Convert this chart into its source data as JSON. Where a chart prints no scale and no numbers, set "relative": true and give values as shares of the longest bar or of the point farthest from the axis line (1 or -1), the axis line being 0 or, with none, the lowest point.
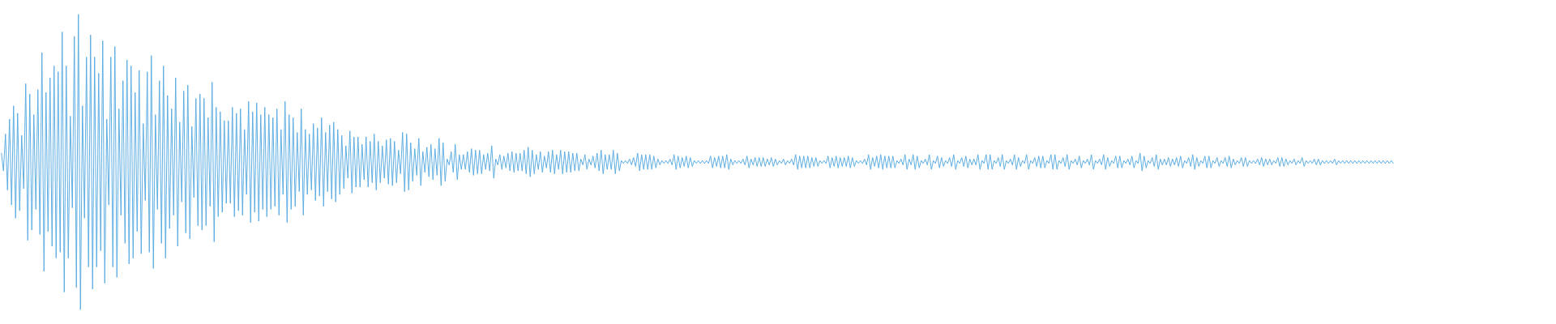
{
  "chart_data": {
    "type": "line",
    "relative": true,
    "tick_labels": false,
    "color": "#5dade2",
    "line_style": "solid",
    "categories": [
      null,
      null,
      null,
      null,
      null,
      null,
      null,
      null,
      null,
      null,
      null,
      null,
      null,
      null,
      null,
      null,
      null,
      null,
      null,
      null,
      null,
      null,
      null,
      null,
      null,
      null,
      null,
      null,
      null,
      null,
      null,
      null,
      null,
      null,
      null,
      null,
      null,
      null,
      null,
      null,
      null,
      null,
      null,
      null,
      null,
      null,
      null,
      null,
      null,
      null,
      null,
      null,
      null,
      null,
      null,
      null,
      null,
      null,
      null,
      null,
      null,
      null,
      null,
      null,
      null,
      null,
      null,
      null,
      null,
      null,
      null,
      null,
      null,
      null,
      null,
      null,
      null,
      null,
      null,
      null,
      null,
      null,
      null,
      null,
      null,
      null,
      null,
      null,
      null,
      null,
      null,
      null,
      null,
      null,
      null,
      null,
      null,
      null,
      null,
      null,
      null,
      null,
      null,
      null,
      null,
      null,
      null,
      null,
      null,
      null,
      null,
      null,
      null,
      null,
      null,
      null,
      null,
      null,
      null,
      null,
      null,
      null,
      null,
      null,
      null,
      null,
      null,
      null,
      null,
      null,
      null,
      null,
      null,
      null,
      null,
      null,
      null,
      null,
      null,
      null,
      null,
      null,
      null,
      null,
      null,
      null,
      null,
      null,
      null,
      null,
      null,
      null,
      null,
      null,
      null,
      null,
      null,
      null,
      null,
      null,
      null,
      null,
      null,
      null,
      null,
      null,
      null,
      null,
      null,
      null,
      null,
      null,
      null,
      null,
      null,
      null,
      null,
      null,
      null,
      null,
      null,
      null,
      null,
      null,
      null,
      null,
      null,
      null,
      null,
      null,
      null,
      null,
      null,
      null,
      null,
      null,
      null,
      null,
      null,
      null,
      null,
      null,
      null,
      null,
      null,
      null,
      null,
      null,
      null,
      null,
      null,
      null,
      null,
      null,
      null,
      null,
      null,
      null,
      null,
      null,
      null,
      null,
      null,
      null,
      null,
      null,
      null,
      null,
      null,
      null,
      null,
      null,
      null,
      null,
      null,
      null,
      null,
      null,
      null,
      null,
      null,
      null,
      null,
      null,
      null,
      null,
      null,
      null,
      null,
      null,
      null,
      null,
      null,
      null,
      null,
      null,
      null,
      null,
      null,
      null,
      null,
      null,
      null,
      null,
      null,
      null,
      null,
      null,
      null,
      null,
      null,
      null,
      null,
      null,
      null,
      null,
      null,
      null,
      null,
      null,
      null,
      null,
      null,
      null,
      null,
      null,
      null,
      null,
      null,
      null,
      null,
      null,
      null,
      null,
      null,
      null,
      null,
      null,
      null,
      null,
      null,
      null,
      null,
      null,
      null,
      null,
      null,
      null,
      null,
      null,
      null,
      null,
      null,
      null,
      null,
      null,
      null,
      null,
      null,
      null,
      null,
      null,
      null,
      null,
      null,
      null,
      null,
      null,
      null,
      null,
      null,
      null,
      null,
      null,
      null,
      null,
      null,
      null,
      null,
      null,
      null,
      null,
      null,
      null,
      null,
      null,
      null,
      null,
      null,
      null,
      null,
      null,
      null,
      null,
      null,
      null,
      null,
      null,
      null,
      null,
      null,
      null,
      null,
      null,
      null,
      null,
      null,
      null,
      null,
      null,
      null,
      null,
      null,
      null,
      null,
      null,
      null,
      null,
      null,
      null,
      null,
      null,
      null,
      null,
      null,
      null,
      null,
      null,
      null,
      null,
      null,
      null,
      null,
      null,
      null,
      null,
      null,
      null,
      null,
      null,
      null,
      null,
      null,
      null,
      null,
      null,
      null,
      null,
      null,
      null,
      null,
      null,
      null,
      null,
      null,
      null,
      null,
      null,
      null,
      null,
      null,
      null,
      null,
      null,
      null,
      null,
      null,
      null,
      null,
      null,
      null,
      null,
      null,
      null,
      null,
      null,
      null,
      null,
      null,
      null,
      null,
      null,
      null,
      null,
      null,
      null,
      null,
      null,
      null,
      null,
      null,
      null,
      null,
      null,
      null,
      null,
      null,
      null,
      null,
      null,
      null,
      null,
      null,
      null,
      null,
      null,
      null,
      null,
      null,
      null,
      null,
      null,
      null,
      null,
      null,
      null,
      null,
      null,
      null,
      null,
      null,
      null,
      null,
      null,
      null,
      null,
      null,
      null,
      null,
      null,
      null,
      null,
      null,
      null,
      null,
      null,
      null,
      null,
      null,
      null,
      null,
      null,
      null,
      null,
      null,
      null,
      null,
      null,
      null,
      null,
      null,
      null,
      null,
      null,
      null,
      null,
      null,
      null,
      null,
      null,
      null,
      null,
      null,
      null,
      null,
      null,
      null,
      null,
      null,
      null,
      null,
      null,
      null,
      null,
      null,
      null,
      null,
      null,
      null,
      null,
      null,
      null,
      null,
      null,
      null,
      null,
      null,
      null,
      null,
      null,
      null,
      null,
      null,
      null,
      null,
      null,
      null,
      null,
      null,
      null,
      null,
      null,
      null,
      null,
      null,
      null,
      null,
      null,
      null,
      null,
      null,
      null,
      null,
      null,
      null,
      null,
      null,
      null,
      null,
      null,
      null,
      null,
      null,
      null,
      null,
      null,
      null,
      null,
      null,
      null,
      null,
      null,
      null,
      null,
      null,
      null,
      null,
      null,
      null,
      null,
      null,
      null,
      null,
      null,
      null,
      null,
      null,
      null,
      null,
      null,
      null,
      null,
      null,
      null,
      null,
      null,
      null,
      null,
      null,
      null,
      null,
      null,
      null,
      null,
      null,
      null,
      null,
      null,
      null,
      null,
      null,
      null,
      null,
      null,
      null,
      null,
      null,
      null,
      null,
      null,
      null,
      null,
      null,
      null,
      null,
      null,
      null,
      null,
      null,
      null,
      null,
      null,
      null,
      null,
      null,
      null,
      null,
      null,
      null,
      null,
      null,
      null,
      null,
      null,
      null,
      null,
      null,
      null,
      null,
      null,
      null,
      null,
      null,
      null,
      null,
      null,
      null,
      null,
      null,
      null,
      null,
      null,
      null,
      null,
      null,
      null,
      null,
      null
    ],
    "values": [
      0.53,
      0.47,
      0.595,
      0.405,
      0.645,
      0.355,
      0.69,
      0.31,
      0.665,
      0.335,
      0.59,
      0.41,
      0.765,
      0.235,
      0.73,
      0.27,
      0.66,
      0.34,
      0.745,
      0.255,
      0.87,
      0.13,
      0.735,
      0.265,
      0.785,
      0.215,
      0.825,
      0.175,
      0.805,
      0.195,
      0.94,
      0.06,
      0.825,
      0.175,
      0.655,
      0.345,
      0.925,
      0.075,
      1,
      0,
      0.69,
      0.31,
      0.855,
      0.145,
      0.93,
      0.07,
      0.855,
      0.145,
      0.8,
      0.2,
      0.91,
      0.09,
      0.645,
      0.355,
      0.855,
      0.145,
      0.89,
      0.11,
      0.68,
      0.32,
      0.775,
      0.225,
      0.845,
      0.155,
      0.825,
      0.175,
      0.735,
      0.265,
      0.81,
      0.19,
      0.63,
      0.37,
      0.805,
      0.195,
      0.86,
      0.14,
      0.66,
      0.34,
      0.775,
      0.225,
      0.825,
      0.175,
      0.725,
      0.275,
      0.68,
      0.32,
      0.785,
      0.215,
      0.635,
      0.365,
      0.74,
      0.26,
      0.76,
      0.24,
      0.62,
      0.38,
      0.715,
      0.285,
      0.73,
      0.27,
      0.715,
      0.285,
      0.65,
      0.35,
      0.77,
      0.23,
      0.685,
      0.315,
      0.67,
      0.33,
      0.64,
      0.36,
      0.64,
      0.36,
      0.685,
      0.315,
      0.665,
      0.335,
      0.68,
      0.32,
      0.61,
      0.39,
      0.705,
      0.295,
      0.67,
      0.33,
      0.7,
      0.3,
      0.66,
      0.34,
      0.685,
      0.315,
      0.66,
      0.34,
      0.65,
      0.35,
      0.68,
      0.32,
      0.61,
      0.39,
      0.705,
      0.295,
      0.66,
      0.34,
      0.65,
      0.35,
      0.6,
      0.4,
      0.68,
      0.32,
      0.61,
      0.39,
      0.595,
      0.405,
      0.63,
      0.37,
      0.615,
      0.385,
      0.65,
      0.35,
      0.6,
      0.4,
      0.625,
      0.375,
      0.635,
      0.365,
      0.61,
      0.39,
      0.59,
      0.41,
      0.555,
      0.445,
      0.605,
      0.395,
      0.585,
      0.415,
      0.585,
      0.415,
      0.56,
      0.44,
      0.585,
      0.415,
      0.57,
      0.43,
      0.595,
      0.405,
      0.57,
      0.43,
      0.555,
      0.445,
      0.575,
      0.425,
      0.58,
      0.42,
      0.57,
      0.43,
      0.54,
      0.46,
      0.6,
      0.4,
      0.595,
      0.405,
      0.565,
      0.435,
      0.545,
      0.455,
      0.58,
      0.42,
      0.535,
      0.465,
      0.55,
      0.45,
      0.56,
      0.44,
      0.545,
      0.455,
      0.58,
      0.42,
      0.565,
      0.435,
      0.51,
      0.49,
      0.535,
      0.465,
      0.56,
      0.44,
      0.525,
      0.475,
      0.525,
      0.475,
      0.535,
      0.465,
      0.545,
      0.455,
      0.54,
      0.46,
      0.54,
      0.46,
      0.525,
      0.475,
      0.53,
      0.47,
      0.555,
      0.445,
      0.51,
      0.49,
      0.525,
      0.475,
      0.52,
      0.48,
      0.53,
      0.47,
      0.535,
      0.465,
      0.53,
      0.47,
      0.53,
      0.47,
      0.54,
      0.46,
      0.55,
      0.45,
      0.54,
      0.46,
      0.525,
      0.475,
      0.535,
      0.465,
      0.52,
      0.48,
      0.535,
      0.465,
      0.54,
      0.46,
      0.525,
      0.475,
      0.54,
      0.46,
      0.535,
      0.465,
      0.535,
      0.465,
      0.53,
      0.47,
      0.53,
      0.47,
      0.51,
      0.49,
      0.525,
      0.475,
      0.51,
      0.49,
      0.52,
      0.48,
      0.53,
      0.47,
      0.54,
      0.46,
      0.525,
      0.475,
      0.525,
      0.475,
      0.54,
      0.46,
      0.53,
      0.47,
      0.505,
      0.495,
      0.505,
      0.495,
      0.51,
      0.49,
      0.515,
      0.485,
      0.53,
      0.47,
      0.525,
      0.475,
      0.525,
      0.475,
      0.525,
      0.475,
      0.52,
      0.48,
      0.51,
      0.49,
      0.505,
      0.495,
      0.505,
      0.495,
      0.51,
      0.49,
      0.525,
      0.475,
      0.52,
      0.48,
      0.515,
      0.485,
      0.52,
      0.48,
      0.515,
      0.485,
      0.505,
      0.495,
      0.505,
      0.495,
      0.505,
      0.495,
      0.505,
      0.495,
      0.52,
      0.48,
      0.515,
      0.485,
      0.52,
      0.48,
      0.52,
      0.48,
      0.525,
      0.475,
      0.51,
      0.49,
      0.505,
      0.495,
      0.505,
      0.495,
      0.51,
      0.49,
      0.52,
      0.48,
      0.51,
      0.49,
      0.515,
      0.485,
      0.515,
      0.485,
      0.515,
      0.485,
      0.51,
      0.49,
      0.515,
      0.485,
      0.51,
      0.49,
      0.505,
      0.495,
      0.51,
      0.49,
      0.505,
      0.495,
      0.51,
      0.49,
      0.525,
      0.475,
      0.52,
      0.48,
      0.52,
      0.48,
      0.52,
      0.48,
      0.515,
      0.485,
      0.515,
      0.485,
      0.505,
      0.495,
      0.505,
      0.495,
      0.52,
      0.48,
      0.515,
      0.485,
      0.52,
      0.48,
      0.515,
      0.485,
      0.515,
      0.485,
      0.52,
      0.48,
      0.515,
      0.485,
      0.505,
      0.495,
      0.505,
      0.495,
      0.51,
      0.49,
      0.525,
      0.475,
      0.515,
      0.485,
      0.52,
      0.48,
      0.525,
      0.475,
      0.52,
      0.48,
      0.52,
      0.48,
      0.52,
      0.48,
      0.505,
      0.495,
      0.51,
      0.49,
      0.525,
      0.475,
      0.51,
      0.49,
      0.525,
      0.475,
      0.52,
      0.48,
      0.505,
      0.495,
      0.51,
      0.49,
      0.525,
      0.475,
      0.505,
      0.495,
      0.52,
      0.48,
      0.515,
      0.485,
      0.505,
      0.495,
      0.515,
      0.485,
      0.525,
      0.475,
      0.505,
      0.495,
      0.515,
      0.485,
      0.52,
      0.48,
      0.51,
      0.49,
      0.51,
      0.49,
      0.525,
      0.475,
      0.505,
      0.495,
      0.525,
      0.475,
      0.525,
      0.475,
      0.505,
      0.495,
      0.515,
      0.485,
      0.525,
      0.475,
      0.505,
      0.495,
      0.51,
      0.49,
      0.525,
      0.475,
      0.515,
      0.485,
      0.505,
      0.495,
      0.525,
      0.475,
      0.505,
      0.495,
      0.515,
      0.485,
      0.52,
      0.48,
      0.52,
      0.48,
      0.505,
      0.495,
      0.525,
      0.475,
      0.525,
      0.475,
      0.505,
      0.495,
      0.515,
      0.485,
      0.525,
      0.475,
      0.505,
      0.495,
      0.51,
      0.49,
      0.52,
      0.48,
      0.505,
      0.495,
      0.51,
      0.49,
      0.525,
      0.475,
      0.505,
      0.495,
      0.51,
      0.49,
      0.525,
      0.475,
      0.515,
      0.485,
      0.505,
      0.495,
      0.52,
      0.48,
      0.52,
      0.48,
      0.505,
      0.495,
      0.51,
      0.49,
      0.52,
      0.48,
      0.505,
      0.495,
      0.53,
      0.47,
      0.52,
      0.48,
      0.505,
      0.495,
      0.515,
      0.485,
      0.525,
      0.475,
      0.51,
      0.49,
      0.51,
      0.49,
      0.515,
      0.485,
      0.51,
      0.49,
      0.515,
      0.485,
      0.52,
      0.48,
      0.505,
      0.495,
      0.515,
      0.485,
      0.525,
      0.475,
      0.515,
      0.485,
      0.505,
      0.495,
      0.52,
      0.48,
      0.52,
      0.48,
      0.505,
      0.495,
      0.515,
      0.485,
      0.505,
      0.495,
      0.515,
      0.485,
      0.52,
      0.48,
      0.51,
      0.49,
      0.505,
      0.495,
      0.515,
      0.485,
      0.515,
      0.485,
      0.505,
      0.495,
      0.505,
      0.495,
      0.51,
      0.49,
      0.515,
      0.485,
      0.51,
      0.49,
      0.51,
      0.49,
      0.505,
      0.495,
      0.515,
      0.485,
      0.515,
      0.485,
      0.51,
      0.49,
      0.505,
      0.495,
      0.51,
      0.49,
      0.505,
      0.495,
      0.515,
      0.485,
      0.505,
      0.495,
      0.505,
      0.495,
      0.51,
      0.49,
      0.51,
      0.49,
      0.505,
      0.495,
      0.505,
      0.495,
      0.505,
      0.495,
      0.51,
      0.49,
      0.505,
      0.495,
      0.505,
      0.495,
      0.505,
      0.495,
      0.505,
      0.495,
      0.505,
      0.495,
      0.505,
      0.495,
      0.505,
      0.495,
      0.505,
      0.495,
      0.505,
      0.495,
      0.505,
      0.495,
      0.505,
      0.495,
      0.505,
      0.495,
      0.505,
      0.495,
      0.505,
      0.495
    ]
  }
}
